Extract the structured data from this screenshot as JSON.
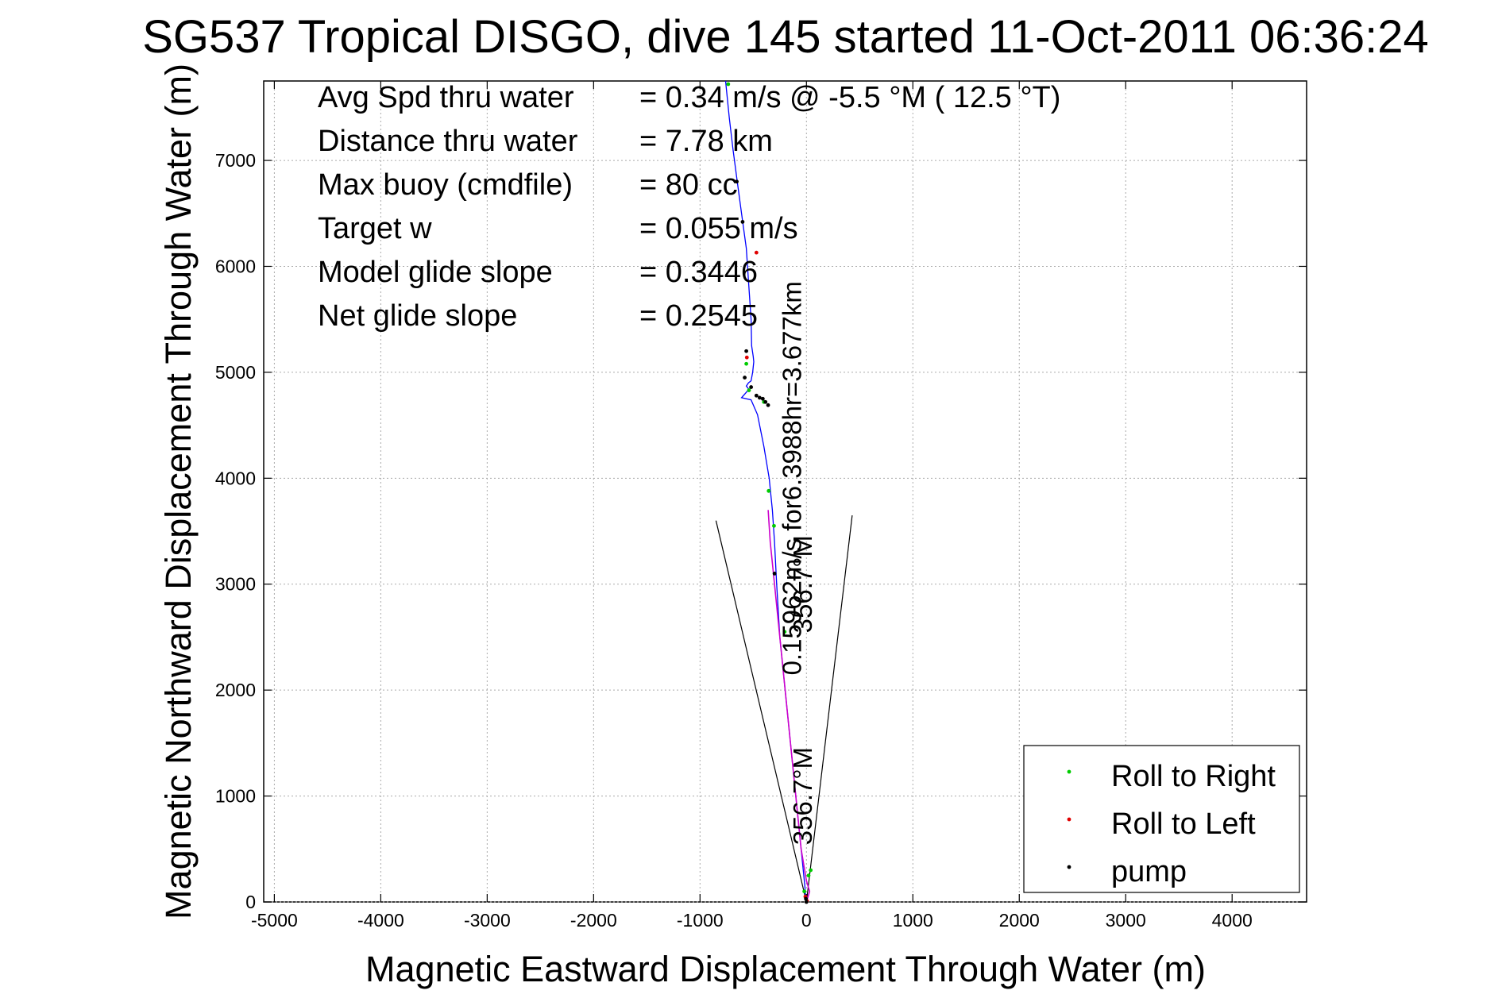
{
  "chart_data": {
    "type": "line",
    "title": "SG537 Tropical DISGO, dive 145 started 11-Oct-2011 06:36:24",
    "xlabel": "Magnetic Eastward Displacement Through Water (m)",
    "ylabel": "Magnetic Northward Displacement Through Water (m)",
    "xlim": [
      -5100,
      4700
    ],
    "ylim": [
      0,
      7750
    ],
    "grid": true,
    "x_ticks": [
      -5000,
      -4000,
      -3000,
      -2000,
      -1000,
      0,
      1000,
      2000,
      3000,
      4000
    ],
    "y_ticks": [
      0,
      1000,
      2000,
      3000,
      4000,
      5000,
      6000,
      7000
    ],
    "stats": [
      {
        "label": "Avg Spd thru water",
        "value": "=  0.34 m/s @  -5.5 °M ( 12.5 °T)"
      },
      {
        "label": "Distance thru water",
        "value": "=  7.78 km"
      },
      {
        "label": "Max buoy (cmdfile)",
        "value": "= 80 cc"
      },
      {
        "label": "Target w",
        "value": "= 0.055 m/s"
      },
      {
        "label": "Model glide slope",
        "value": "= 0.3446"
      },
      {
        "label": "Net glide slope",
        "value": "= 0.2545"
      }
    ],
    "legend": {
      "placement": "bottom-right",
      "entries": [
        {
          "name": "Roll to Right",
          "color": "#00cc00"
        },
        {
          "name": "Roll to Left",
          "color": "#e00000"
        },
        {
          "name": "pump",
          "color": "#000000"
        }
      ]
    },
    "series": [
      {
        "style": "track",
        "color": "#0000ff",
        "x": [
          -760,
          -725,
          -690,
          -650,
          -610,
          -565,
          -540,
          -520,
          -515,
          -500,
          -495,
          -500,
          -505,
          -520,
          -545,
          -565,
          -540,
          -575,
          -610,
          -520,
          -460,
          -400,
          -350,
          -320,
          -300,
          -280,
          -250,
          -200,
          -150,
          -100,
          -50,
          -15,
          -5
        ],
        "y": [
          7750,
          7400,
          7100,
          6800,
          6500,
          6170,
          5800,
          5500,
          5250,
          5150,
          5100,
          5050,
          5000,
          4920,
          4900,
          4870,
          4840,
          4800,
          4760,
          4740,
          4600,
          4300,
          4000,
          3700,
          3400,
          3000,
          2500,
          2000,
          1500,
          1000,
          500,
          150,
          0
        ]
      },
      {
        "style": "current",
        "color": "#cc00cc",
        "x": [
          -360,
          -340,
          -300,
          -250,
          -200,
          -150,
          -100,
          -50,
          0,
          30,
          0
        ],
        "y": [
          3700,
          3400,
          3000,
          2500,
          2000,
          1500,
          1000,
          500,
          200,
          100,
          0
        ]
      }
    ],
    "markers": {
      "roll_right": {
        "color": "#00cc00",
        "x": [
          -735,
          -565,
          -540,
          -400,
          -355,
          -305,
          -205,
          40,
          -20,
          20
        ],
        "y": [
          7720,
          5080,
          4830,
          4720,
          3880,
          3550,
          2550,
          300,
          100,
          250
        ]
      },
      "roll_left": {
        "color": "#e00000",
        "x": [
          -470,
          -560,
          -10,
          5
        ],
        "y": [
          6130,
          5140,
          50,
          10
        ]
      },
      "pump": {
        "color": "#000000",
        "x": [
          -655,
          -600,
          -565,
          -580,
          -520,
          -470,
          -440,
          -410,
          -385,
          -360,
          -300,
          -5,
          0
        ],
        "y": [
          6800,
          6420,
          5200,
          4950,
          4860,
          4780,
          4760,
          4750,
          4720,
          4690,
          3100,
          30,
          0
        ]
      }
    },
    "wedge": {
      "apex": [
        0,
        0
      ],
      "left_end": [
        -850,
        3600
      ],
      "right_end": [
        430,
        3650
      ]
    },
    "annotations": [
      {
        "text": "0.15962m/s for6.3988hr=3.677km",
        "x": -50,
        "y": 4000
      },
      {
        "text": "356.7°M",
        "x": 50,
        "y": 3000
      },
      {
        "text": "356.7°M",
        "x": 50,
        "y": 1000
      }
    ]
  }
}
